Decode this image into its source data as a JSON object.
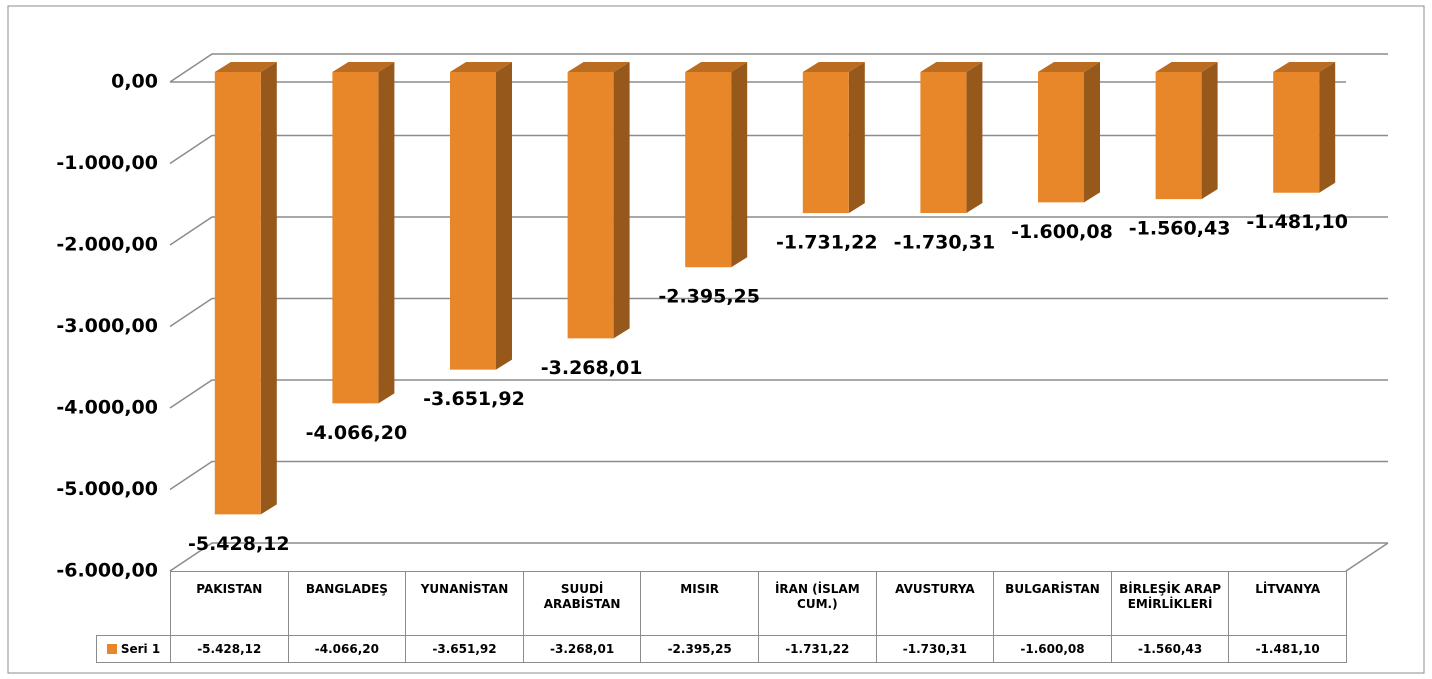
{
  "chart_data": {
    "type": "bar3d",
    "categories": [
      "PAKISTAN",
      "BANGLADEŞ",
      "YUNANİSTAN",
      "SUUDİ ARABİSTAN",
      "MISIR",
      "İRAN (İSLAM CUM.)",
      "AVUSTURYA",
      "BULGARİSTAN",
      "BİRLEŞİK ARAP EMİRLİKLERİ",
      "LİTVANYA"
    ],
    "series": [
      {
        "name": "Seri 1",
        "color": "#e8872a",
        "values": [
          -5428.12,
          -4066.2,
          -3651.92,
          -3268.01,
          -2395.25,
          -1731.22,
          -1730.31,
          -1600.08,
          -1560.43,
          -1481.1
        ],
        "value_labels": [
          "-5.428,12",
          "-4.066,20",
          "-3.651,92",
          "-3.268,01",
          "-2.395,25",
          "-1.731,22",
          "-1.730,31",
          "-1.600,08",
          "-1.560,43",
          "-1.481,10"
        ]
      }
    ],
    "ylim": [
      -6000,
      0
    ],
    "yticks": [
      {
        "value": 0,
        "label": "0,00"
      },
      {
        "value": -1000,
        "label": "-1.000,00"
      },
      {
        "value": -2000,
        "label": "-2.000,00"
      },
      {
        "value": -3000,
        "label": "-3.000,00"
      },
      {
        "value": -4000,
        "label": "-4.000,00"
      },
      {
        "value": -5000,
        "label": "-5.000,00"
      },
      {
        "value": -6000,
        "label": "-6.000,00"
      }
    ],
    "grid": true,
    "data_table": true
  }
}
